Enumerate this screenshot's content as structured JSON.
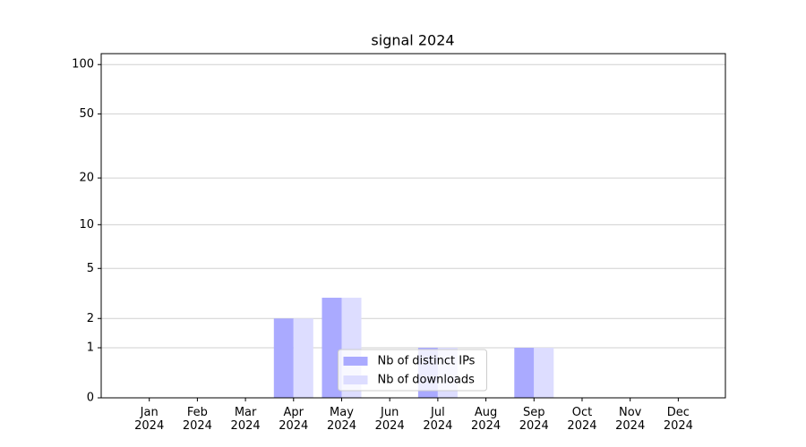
{
  "chart_data": {
    "type": "bar",
    "title": "signal 2024",
    "categories": [
      "Jan 2024",
      "Feb 2024",
      "Mar 2024",
      "Apr 2024",
      "May 2024",
      "Jun 2024",
      "Jul 2024",
      "Aug 2024",
      "Sep 2024",
      "Oct 2024",
      "Nov 2024",
      "Dec 2024"
    ],
    "series": [
      {
        "name": "Nb of distinct IPs",
        "color": "#aaaaff",
        "values": [
          0,
          0,
          0,
          2,
          3,
          0,
          1,
          0,
          1,
          0,
          0,
          0
        ]
      },
      {
        "name": "Nb of downloads",
        "color": "#ddddff",
        "values": [
          0,
          0,
          0,
          2,
          3,
          0,
          1,
          0,
          1,
          0,
          0,
          0
        ]
      }
    ],
    "yscale": "symlog",
    "ylim": [
      0,
      116.5
    ],
    "yticks": [
      0,
      1,
      2,
      5,
      10,
      20,
      50,
      100
    ],
    "grid": true,
    "legend": "lower center"
  }
}
